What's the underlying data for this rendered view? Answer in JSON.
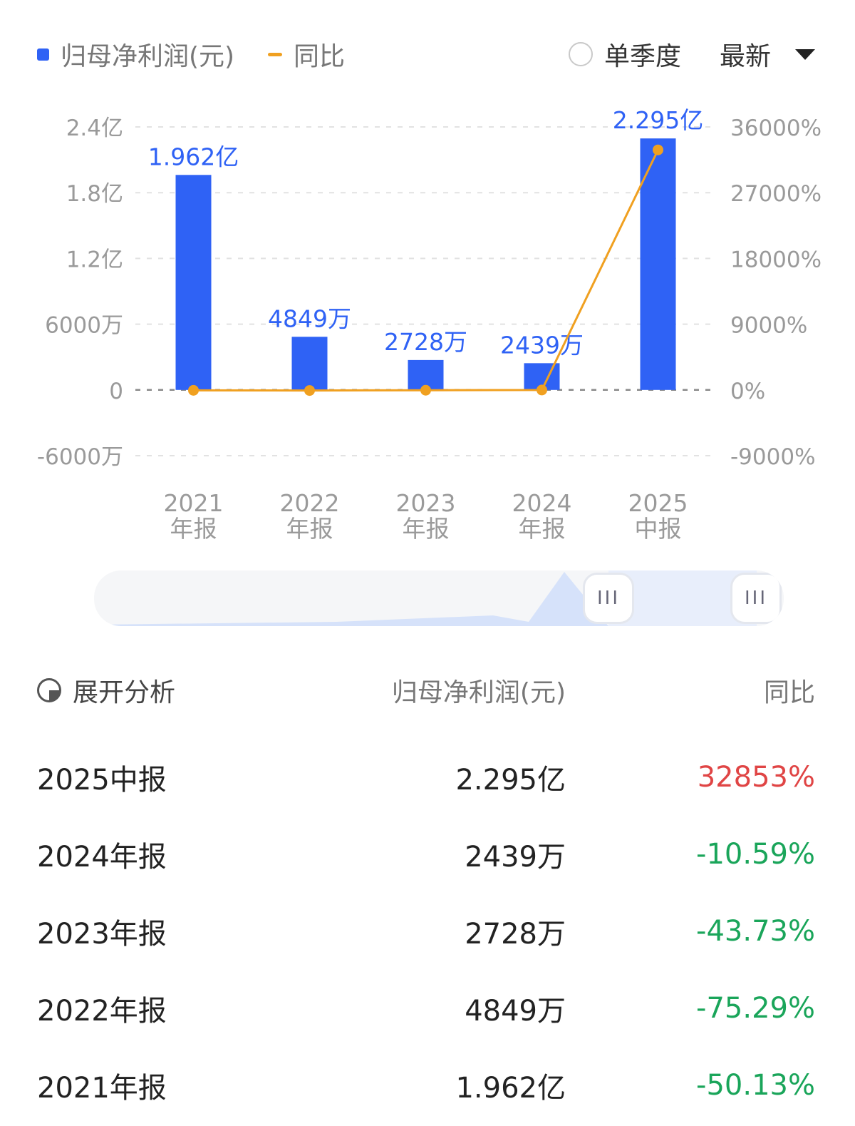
{
  "legend": {
    "bar_label": "归母净利润(元)",
    "line_label": "同比",
    "single_quarter_label": "单季度",
    "latest_label": "最新"
  },
  "chart_data": {
    "type": "bar+line",
    "categories": [
      [
        "2021",
        "年报"
      ],
      [
        "2022",
        "年报"
      ],
      [
        "2023",
        "年报"
      ],
      [
        "2024",
        "年报"
      ],
      [
        "2025",
        "中报"
      ]
    ],
    "series": [
      {
        "name": "归母净利润(元)",
        "type": "bar",
        "axis": "left",
        "values": [
          196200000,
          48490000,
          27280000,
          24390000,
          229500000
        ],
        "labels": [
          "1.962亿",
          "4849万",
          "2728万",
          "2439万",
          "2.295亿"
        ]
      },
      {
        "name": "同比",
        "type": "line",
        "axis": "right",
        "values": [
          -50.13,
          -75.29,
          -43.73,
          -10.59,
          32853
        ]
      }
    ],
    "left_axis": {
      "ticks": [
        240000000,
        180000000,
        120000000,
        60000000,
        0,
        -60000000
      ],
      "tick_labels": [
        "2.4亿",
        "1.8亿",
        "1.2亿",
        "6000万",
        "0",
        "-6000万"
      ],
      "ylim": [
        -60000000,
        240000000
      ]
    },
    "right_axis": {
      "ticks": [
        36000,
        27000,
        18000,
        9000,
        0,
        -9000
      ],
      "tick_labels": [
        "36000%",
        "27000%",
        "18000%",
        "9000%",
        "0%",
        "-9000%"
      ],
      "ylim": [
        -9000,
        36000
      ]
    },
    "grid": true,
    "colors": {
      "bar": "#2f62f5",
      "line": "#f0a020",
      "label": "#2f62f5"
    }
  },
  "table": {
    "header": {
      "analyze": "展开分析",
      "value": "归母净利润(元)",
      "yoy": "同比"
    },
    "rows": [
      {
        "period": "2025中报",
        "value": "2.295亿",
        "yoy": "32853%",
        "dir": "up"
      },
      {
        "period": "2024年报",
        "value": "2439万",
        "yoy": "-10.59%",
        "dir": "down"
      },
      {
        "period": "2023年报",
        "value": "2728万",
        "yoy": "-43.73%",
        "dir": "down"
      },
      {
        "period": "2022年报",
        "value": "4849万",
        "yoy": "-75.29%",
        "dir": "down"
      },
      {
        "period": "2021年报",
        "value": "1.962亿",
        "yoy": "-50.13%",
        "dir": "down"
      }
    ]
  },
  "slider": {
    "handle_glyph": "III"
  }
}
